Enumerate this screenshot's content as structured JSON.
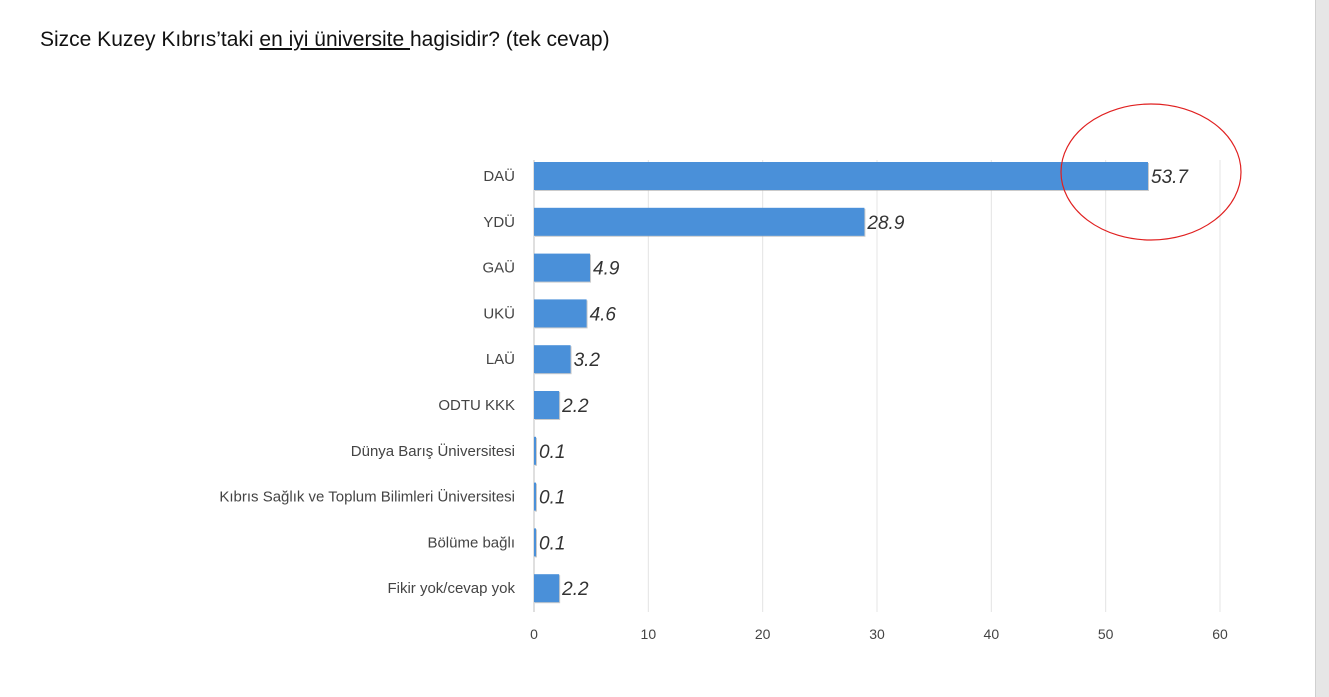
{
  "title": {
    "pre": "Sizce Kuzey Kıbrıs’taki ",
    "underlined": "en iyi üniversite ",
    "post": "hagisidir? (tek cevap)"
  },
  "chart_data": {
    "type": "bar",
    "orientation": "horizontal",
    "categories": [
      "DAÜ",
      "YDÜ",
      "GAÜ",
      "UKÜ",
      "LAÜ",
      "ODTU KKK",
      "Dünya Barış Üniversitesi",
      "Kıbrıs Sağlık ve Toplum Bilimleri Üniversitesi",
      "Bölüme bağlı",
      "Fikir yok/cevap yok"
    ],
    "values": [
      53.7,
      28.9,
      4.9,
      4.6,
      3.2,
      2.2,
      0.1,
      0.1,
      0.1,
      2.2
    ],
    "value_labels": [
      "53.7",
      "28.9",
      "4.9",
      "4.6",
      "3.2",
      "2.2",
      "0.1",
      "0.1",
      "0.1",
      "2.2"
    ],
    "xlim": [
      0,
      60
    ],
    "xticks": [
      "0",
      "10",
      "20",
      "30",
      "40",
      "50",
      "60"
    ],
    "grid": true,
    "highlight": "DAÜ",
    "bar_color": "#4a90d9",
    "highlight_color": "#e02020",
    "title": "",
    "xlabel": "",
    "ylabel": ""
  }
}
